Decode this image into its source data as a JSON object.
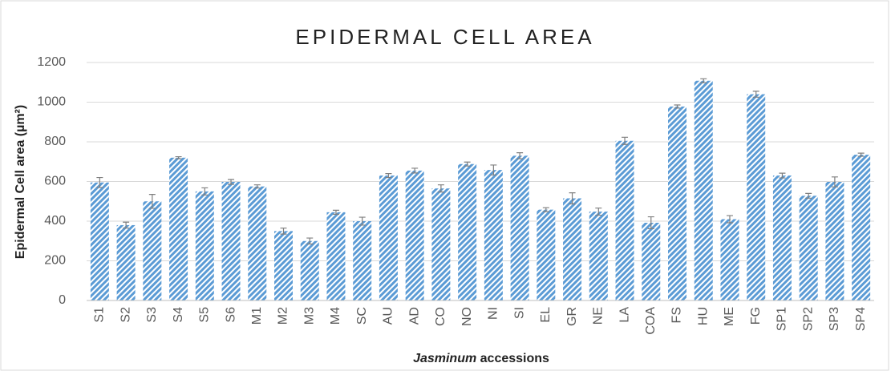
{
  "chart_data": {
    "type": "bar",
    "title": "EPIDERMAL CELL AREA",
    "ylabel": "Epidermal Cell area (µm²)",
    "xlabel": [
      "Jasminum",
      "accessions"
    ],
    "categories": [
      "S1",
      "S2",
      "S3",
      "S4",
      "S5",
      "S6",
      "M1",
      "M2",
      "M3",
      "M4",
      "SC",
      "AU",
      "AD",
      "CO",
      "NO",
      "NI",
      "SI",
      "EL",
      "GR",
      "NE",
      "LA",
      "COA",
      "FS",
      "HU",
      "ME",
      "FG",
      "SP1",
      "SP2",
      "SP3",
      "SP4"
    ],
    "values": [
      595,
      380,
      500,
      720,
      550,
      598,
      575,
      350,
      300,
      445,
      400,
      630,
      655,
      565,
      688,
      658,
      730,
      458,
      515,
      448,
      805,
      392,
      978,
      1108,
      410,
      1040,
      630,
      528,
      598,
      735
    ],
    "errors": [
      25,
      15,
      35,
      5,
      18,
      12,
      8,
      15,
      15,
      10,
      20,
      10,
      12,
      18,
      10,
      25,
      15,
      10,
      28,
      18,
      18,
      30,
      8,
      10,
      18,
      15,
      12,
      12,
      25,
      8
    ],
    "color": "#5b9bd5",
    "ylim": [
      0,
      1200
    ],
    "yticks": [
      0,
      200,
      400,
      600,
      800,
      1000,
      1200
    ],
    "grid": true
  }
}
